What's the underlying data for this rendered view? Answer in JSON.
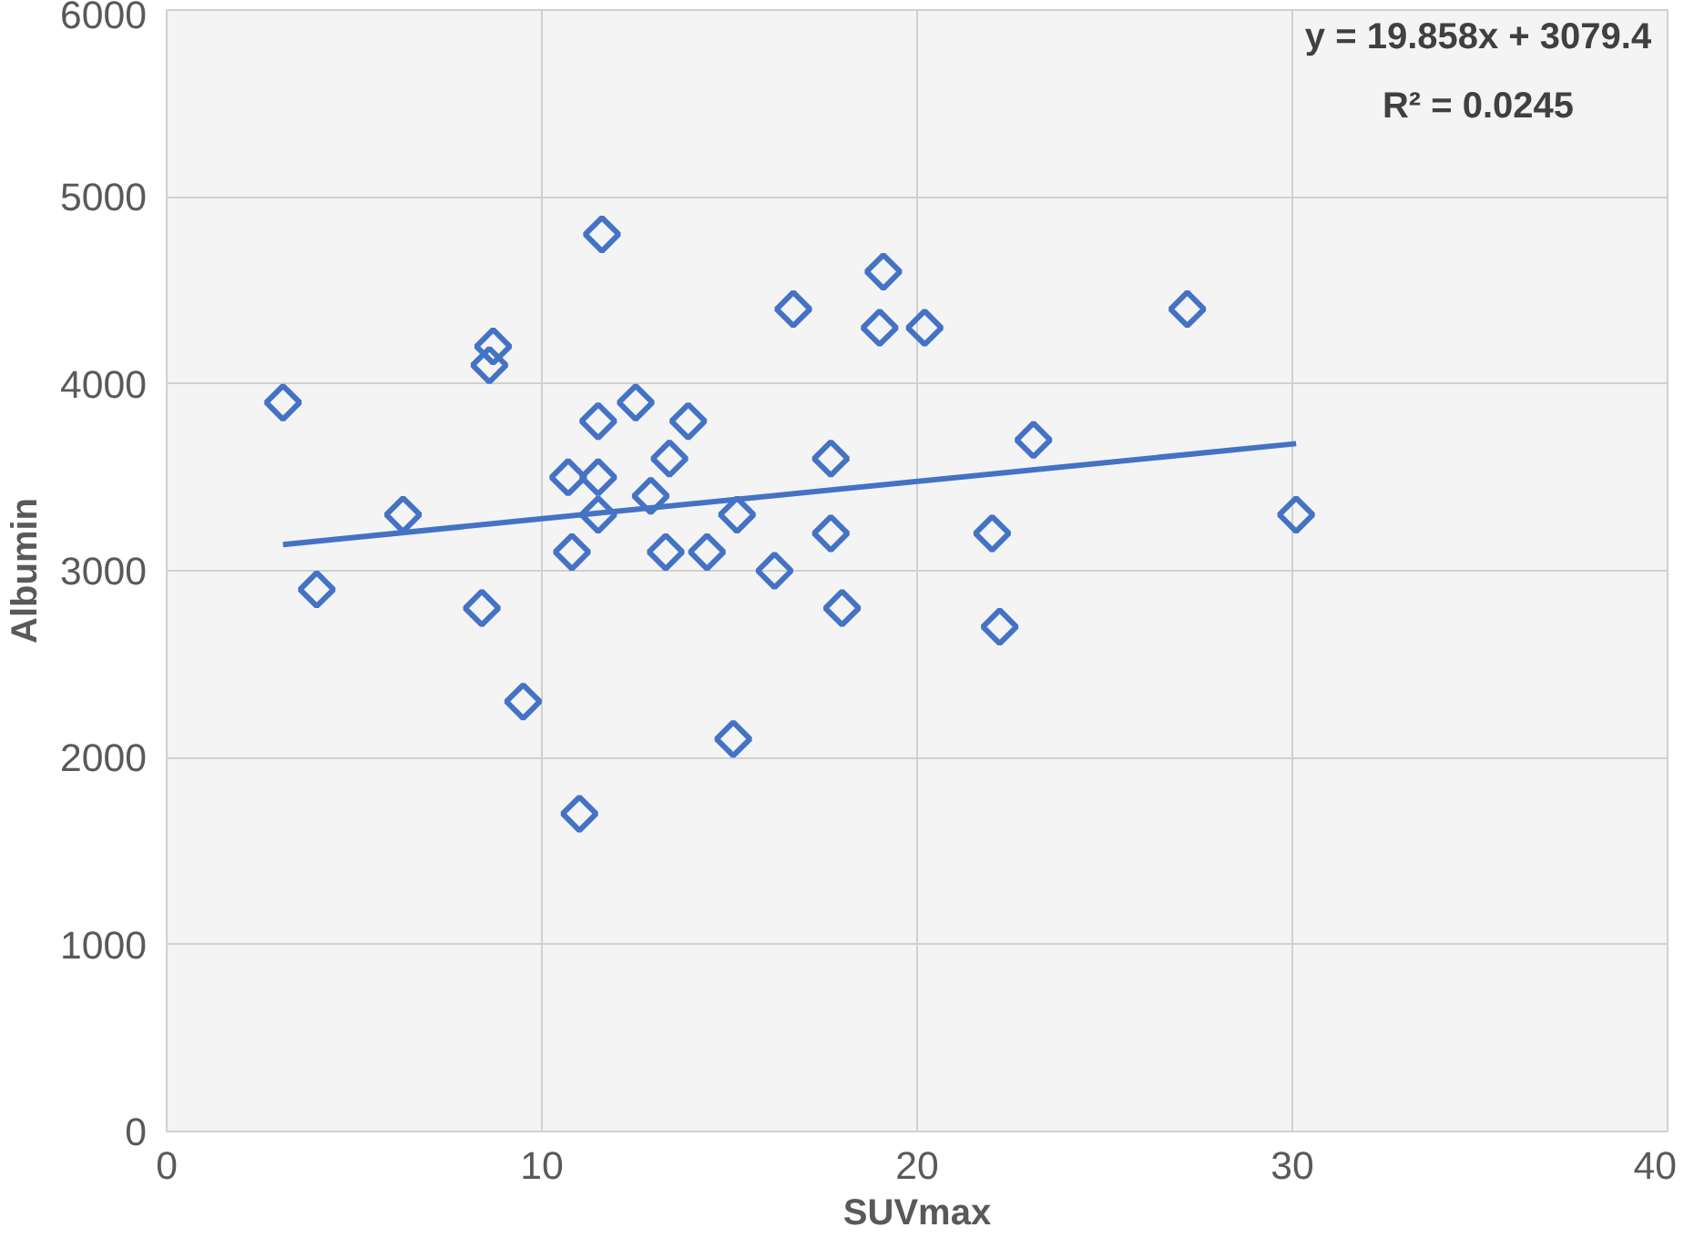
{
  "chart_data": {
    "type": "scatter",
    "xlabel": "SUVmax",
    "ylabel": "Albumin",
    "xlim": [
      0,
      40
    ],
    "xticks": [
      0,
      10,
      20,
      30,
      40
    ],
    "ylim": [
      0,
      6000
    ],
    "yticks": [
      0,
      1000,
      2000,
      3000,
      4000,
      5000,
      6000
    ],
    "grid": true,
    "annotations": [
      "y = 19.858x + 3079.4",
      "R² = 0.0245"
    ],
    "series": [
      {
        "color": "#4472c4",
        "marker": "diamond",
        "x": [
          3.1,
          4.0,
          6.3,
          8.4,
          8.7,
          8.6,
          9.5,
          10.7,
          10.8,
          11.0,
          11.5,
          11.6,
          11.5,
          11.5,
          12.5,
          12.9,
          13.4,
          13.3,
          13.9,
          14.4,
          15.2,
          15.1,
          16.2,
          16.7,
          17.7,
          17.7,
          18.0,
          19.0,
          19.1,
          20.2,
          22.0,
          22.2,
          23.1,
          27.2,
          30.1
        ],
        "values": [
          3900,
          2900,
          3300,
          2800,
          4200,
          4100,
          2300,
          3500,
          3100,
          1700,
          3300,
          4800,
          3800,
          3500,
          3900,
          3400,
          3600,
          3100,
          3800,
          3100,
          3300,
          2100,
          3000,
          4400,
          3600,
          3200,
          2800,
          4300,
          4600,
          4300,
          3200,
          2700,
          3700,
          4400,
          3300
        ]
      },
      {
        "type": "line",
        "color": "#4472c4",
        "marker": "none",
        "x": [
          3.1,
          30.1
        ],
        "values": [
          3140,
          3680
        ]
      }
    ]
  }
}
